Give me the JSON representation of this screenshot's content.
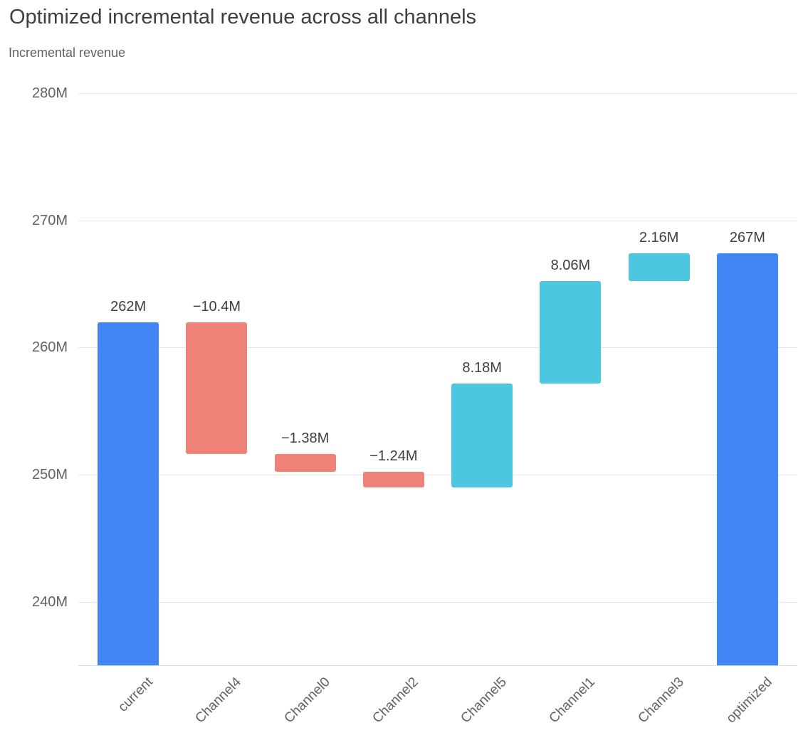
{
  "header": {
    "title": "Optimized incremental revenue across all channels",
    "subtitle": "Incremental revenue"
  },
  "chart_data": {
    "type": "bar",
    "subtype": "waterfall",
    "title": "Optimized incremental revenue across all channels",
    "ylabel": "Incremental revenue",
    "xlabel": "",
    "ylim": [
      235,
      280
    ],
    "grid": true,
    "legend": "none",
    "y_ticks": [
      {
        "value": 240,
        "label": "240M"
      },
      {
        "value": 250,
        "label": "250M"
      },
      {
        "value": 260,
        "label": "260M"
      },
      {
        "value": 270,
        "label": "270M"
      },
      {
        "value": 280,
        "label": "280M"
      }
    ],
    "categories": [
      "current",
      "Channel4",
      "Channel0",
      "Channel2",
      "Channel5",
      "Channel1",
      "Channel3",
      "optimized"
    ],
    "values": [
      262,
      -10.4,
      -1.38,
      -1.24,
      8.18,
      8.06,
      2.16,
      267
    ],
    "bars": [
      {
        "category": "current",
        "kind": "total",
        "start": 235,
        "end": 262,
        "value": 262,
        "label": "262M"
      },
      {
        "category": "Channel4",
        "kind": "negative",
        "start": 262,
        "end": 251.6,
        "value": -10.4,
        "label": "−10.4M"
      },
      {
        "category": "Channel0",
        "kind": "negative",
        "start": 251.6,
        "end": 250.22,
        "value": -1.38,
        "label": "−1.38M"
      },
      {
        "category": "Channel2",
        "kind": "negative",
        "start": 250.22,
        "end": 248.98,
        "value": -1.24,
        "label": "−1.24M"
      },
      {
        "category": "Channel5",
        "kind": "positive",
        "start": 248.98,
        "end": 257.16,
        "value": 8.18,
        "label": "8.18M"
      },
      {
        "category": "Channel1",
        "kind": "positive",
        "start": 257.16,
        "end": 265.22,
        "value": 8.06,
        "label": "8.06M"
      },
      {
        "category": "Channel3",
        "kind": "positive",
        "start": 265.22,
        "end": 267.38,
        "value": 2.16,
        "label": "2.16M"
      },
      {
        "category": "optimized",
        "kind": "total",
        "start": 235,
        "end": 267.38,
        "value": 267,
        "label": "267M"
      }
    ],
    "colors": {
      "total": "#4285f4",
      "negative": "#ee8276",
      "positive": "#4dc6e0",
      "gridline": "#e5e6e9",
      "title_text": "#3c4043",
      "axis_text": "#5f6368"
    }
  }
}
